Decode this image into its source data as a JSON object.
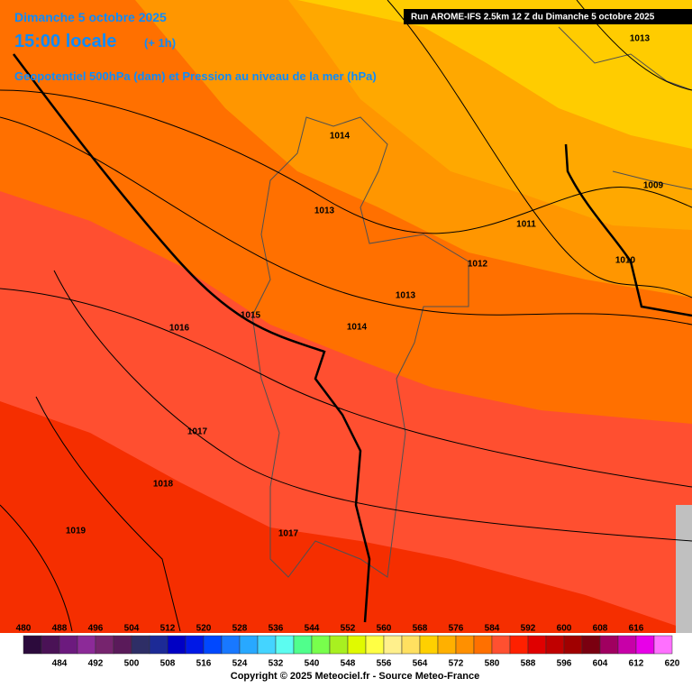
{
  "header": {
    "date": "Dimanche 5 octobre 2025",
    "time": "15:00 locale",
    "offset": "(+ 1h)",
    "subtitle": "Geopotentiel 500hPa (dam) et Pression au niveau de la mer (hPa)",
    "run": "Run AROME-IFS 2.5km 12 Z du Dimanche 5 octobre 2025"
  },
  "isobar_labels": [
    1013,
    1014,
    1009,
    1013,
    1011,
    1010,
    1012,
    1013,
    1015,
    1014,
    1016,
    1017,
    1018,
    1019,
    1017
  ],
  "colorbar": {
    "values": [
      480,
      484,
      488,
      492,
      496,
      500,
      504,
      508,
      512,
      516,
      520,
      524,
      528,
      532,
      536,
      540,
      544,
      548,
      552,
      556,
      560,
      564,
      568,
      572,
      576,
      580,
      584,
      588,
      592,
      596,
      600,
      604,
      608,
      612,
      616,
      620
    ],
    "colors": [
      "#2c0a3c",
      "#4a1256",
      "#6c1a7e",
      "#8c2a98",
      "#76246e",
      "#5a1a5a",
      "#2e2e66",
      "#1c2a96",
      "#0000c4",
      "#0018e6",
      "#0048ff",
      "#1878ff",
      "#28a8ff",
      "#44d4ff",
      "#5cfcf0",
      "#50ff8c",
      "#78ff4c",
      "#a8f020",
      "#e0fa00",
      "#ffff44",
      "#fff08c",
      "#ffe060",
      "#ffd000",
      "#ffb000",
      "#ff9000",
      "#ff7000",
      "#ff5030",
      "#ff2000",
      "#e00000",
      "#c00000",
      "#a00000",
      "#7a0010",
      "#a00060",
      "#c800a8",
      "#e800e8",
      "#ff70ff"
    ]
  },
  "footer": "Copyright © 2025 Meteociel.fr - Source Meteo-France"
}
